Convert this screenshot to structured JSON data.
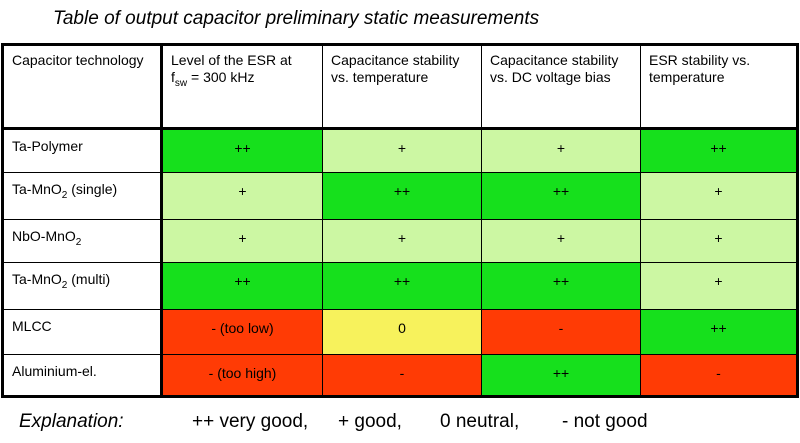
{
  "title": "Table of output capacitor preliminary static measurements",
  "colors": {
    "very_good": "#16e01c",
    "good": "#ccf7a3",
    "neutral": "#f7f25c",
    "not_good": "#ff3b05"
  },
  "table": {
    "headers": {
      "technology": "Capacitor technology",
      "esr_level_prefix": "Level of the ESR at",
      "esr_level_sym": "f",
      "esr_level_sub": "sw",
      "esr_level_suffix": " = 300 kHz",
      "cap_temp": "Capacitance stability vs. temperature",
      "cap_dc": "Capacitance stability vs. DC voltage bias",
      "esr_temp": "ESR stability vs. temperature"
    },
    "rows": [
      {
        "tech_main": "Ta-Polymer",
        "tech_sub": "",
        "tech_suffix": "",
        "c1": "++",
        "c2": "+",
        "c3": "+",
        "c4": "++"
      },
      {
        "tech_main": "Ta-MnO",
        "tech_sub": "2",
        "tech_suffix": " (single)",
        "c1": "+",
        "c2": "++",
        "c3": "++",
        "c4": "+"
      },
      {
        "tech_main": "NbO-MnO",
        "tech_sub": "2",
        "tech_suffix": "",
        "c1": "+",
        "c2": "+",
        "c3": "+",
        "c4": "+"
      },
      {
        "tech_main": "Ta-MnO",
        "tech_sub": "2",
        "tech_suffix": " (multi)",
        "c1": "++",
        "c2": "++",
        "c3": "++",
        "c4": "+"
      },
      {
        "tech_main": "MLCC",
        "tech_sub": "",
        "tech_suffix": "",
        "c1": "- (too low)",
        "c2": "0",
        "c3": "-",
        "c4": "++"
      },
      {
        "tech_main": "Aluminium-el.",
        "tech_sub": "",
        "tech_suffix": "",
        "c1": "- (too high)",
        "c2": "-",
        "c3": "++",
        "c4": "-"
      }
    ]
  },
  "explanation": {
    "label": "Explanation:",
    "very_good": "++ very good,",
    "good": "+ good,",
    "neutral": "0 neutral,",
    "not_good": "-  not good"
  }
}
